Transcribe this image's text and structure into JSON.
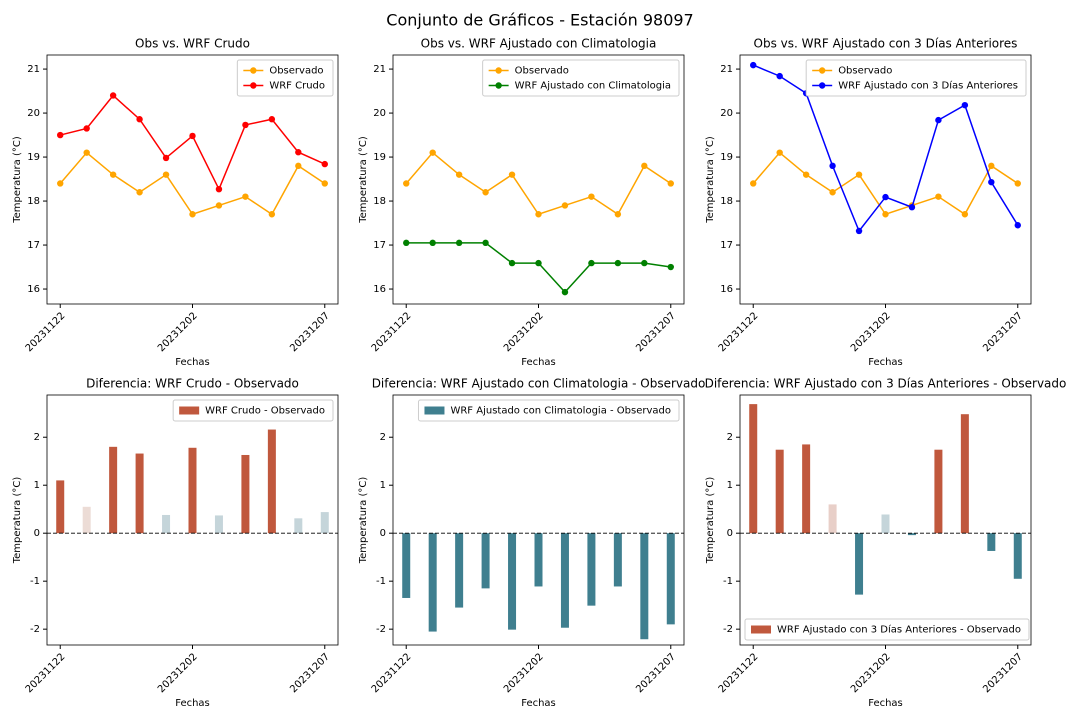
{
  "title": "Conjunto de Gráficos - Estación 98097",
  "chart_data": [
    {
      "type": "line",
      "title": "Obs vs. WRF Crudo",
      "xlabel": "Fechas",
      "ylabel": "Temperatura (°C)",
      "categories": [
        "20231122",
        null,
        null,
        null,
        null,
        "20231202",
        null,
        null,
        null,
        null,
        "20231207"
      ],
      "series": [
        {
          "name": "Observado",
          "color": "#ffa500",
          "values": [
            18.4,
            19.1,
            18.6,
            18.2,
            18.6,
            17.7,
            17.9,
            18.1,
            17.7,
            18.8,
            18.4
          ]
        },
        {
          "name": "WRF Crudo",
          "color": "#ff0000",
          "values": [
            19.5,
            19.65,
            20.4,
            19.86,
            18.98,
            19.48,
            18.27,
            19.73,
            19.86,
            19.11,
            18.84
          ]
        }
      ],
      "ylim": [
        15.66,
        21.32
      ],
      "yticks": [
        16,
        17,
        18,
        19,
        20,
        21
      ],
      "legend": "upper right"
    },
    {
      "type": "line",
      "title": "Obs vs. WRF Ajustado con Climatologia",
      "xlabel": "Fechas",
      "ylabel": "Temperatura (°C)",
      "categories": [
        "20231122",
        null,
        null,
        null,
        null,
        "20231202",
        null,
        null,
        null,
        null,
        "20231207"
      ],
      "series": [
        {
          "name": "Observado",
          "color": "#ffa500",
          "values": [
            18.4,
            19.1,
            18.6,
            18.2,
            18.6,
            17.7,
            17.9,
            18.1,
            17.7,
            18.8,
            18.4
          ]
        },
        {
          "name": "WRF Ajustado con Climatologia",
          "color": "#008000",
          "values": [
            17.05,
            17.05,
            17.05,
            17.05,
            16.59,
            16.59,
            15.93,
            16.59,
            16.59,
            16.59,
            16.5
          ]
        }
      ],
      "ylim": [
        15.66,
        21.32
      ],
      "yticks": [
        16,
        17,
        18,
        19,
        20,
        21
      ],
      "legend": "upper right"
    },
    {
      "type": "line",
      "title": "Obs vs. WRF Ajustado con 3 Días Anteriores",
      "xlabel": "Fechas",
      "ylabel": "Temperatura (°C)",
      "categories": [
        "20231122",
        null,
        null,
        null,
        null,
        "20231202",
        null,
        null,
        null,
        null,
        "20231207"
      ],
      "series": [
        {
          "name": "Observado",
          "color": "#ffa500",
          "values": [
            18.4,
            19.1,
            18.6,
            18.2,
            18.6,
            17.7,
            17.9,
            18.1,
            17.7,
            18.8,
            18.4
          ]
        },
        {
          "name": "WRF Ajustado con 3 Días Anteriores",
          "color": "#0000ff",
          "values": [
            21.09,
            20.84,
            20.45,
            18.8,
            17.32,
            18.09,
            17.86,
            19.84,
            20.18,
            18.43,
            17.45
          ]
        }
      ],
      "ylim": [
        15.66,
        21.32
      ],
      "yticks": [
        16,
        17,
        18,
        19,
        20,
        21
      ],
      "legend": "upper right"
    },
    {
      "type": "bar",
      "title": "Diferencia: WRF Crudo - Observado",
      "xlabel": "Fechas",
      "ylabel": "Temperatura (°C)",
      "categories": [
        "20231122",
        null,
        null,
        null,
        null,
        "20231202",
        null,
        null,
        null,
        null,
        "20231207"
      ],
      "series": [
        {
          "name": "WRF Crudo - Observado",
          "color": "#c0583d",
          "colors": [
            "#c0583d",
            "#ecdcd6",
            "#c0583d",
            "#c0583d",
            "#c5d5da",
            "#c0583d",
            "#c5d5da",
            "#c0583d",
            "#c0583d",
            "#c5d5da",
            "#c5d5da"
          ],
          "values": [
            1.1,
            0.55,
            1.8,
            1.66,
            0.38,
            1.78,
            0.37,
            1.63,
            2.16,
            0.31,
            0.44
          ]
        }
      ],
      "hline": 0,
      "ylim": [
        -2.33,
        2.88
      ],
      "yticks": [
        -2,
        -1,
        0,
        1,
        2
      ],
      "legend": "upper right"
    },
    {
      "type": "bar",
      "title": "Diferencia: WRF Ajustado con Climatologia - Observado",
      "xlabel": "Fechas",
      "ylabel": "Temperatura (°C)",
      "categories": [
        "20231122",
        null,
        null,
        null,
        null,
        "20231202",
        null,
        null,
        null,
        null,
        "20231207"
      ],
      "series": [
        {
          "name": "WRF Ajustado con Climatologia - Observado",
          "color": "#3f7f8f",
          "colors": [
            "#3f7f8f",
            "#3f7f8f",
            "#3f7f8f",
            "#3f7f8f",
            "#3f7f8f",
            "#3f7f8f",
            "#3f7f8f",
            "#3f7f8f",
            "#3f7f8f",
            "#3f7f8f",
            "#3f7f8f"
          ],
          "values": [
            -1.35,
            -2.05,
            -1.55,
            -1.15,
            -2.01,
            -1.11,
            -1.97,
            -1.51,
            -1.11,
            -2.21,
            -1.9
          ]
        }
      ],
      "hline": 0,
      "ylim": [
        -2.33,
        2.88
      ],
      "yticks": [
        -2,
        -1,
        0,
        1,
        2
      ],
      "legend": "upper right"
    },
    {
      "type": "bar",
      "title": "Diferencia: WRF Ajustado con 3 Días Anteriores - Observado",
      "xlabel": "Fechas",
      "ylabel": "Temperatura (°C)",
      "categories": [
        "20231122",
        null,
        null,
        null,
        null,
        "20231202",
        null,
        null,
        null,
        null,
        "20231207"
      ],
      "series": [
        {
          "name": "WRF Ajustado con 3 Días Anteriores - Observado",
          "color": "#c0583d",
          "colors": [
            "#c0583d",
            "#c0583d",
            "#c0583d",
            "#e8cfc8",
            "#3f7f8f",
            "#c5d5da",
            "#3f7f8f",
            "#c0583d",
            "#c0583d",
            "#3f7f8f",
            "#3f7f8f"
          ],
          "values": [
            2.69,
            1.74,
            1.85,
            0.6,
            -1.28,
            0.39,
            -0.04,
            1.74,
            2.48,
            -0.37,
            -0.95
          ]
        }
      ],
      "hline": 0,
      "ylim": [
        -2.33,
        2.88
      ],
      "yticks": [
        -2,
        -1,
        0,
        1,
        2
      ],
      "legend": "lower left"
    }
  ]
}
